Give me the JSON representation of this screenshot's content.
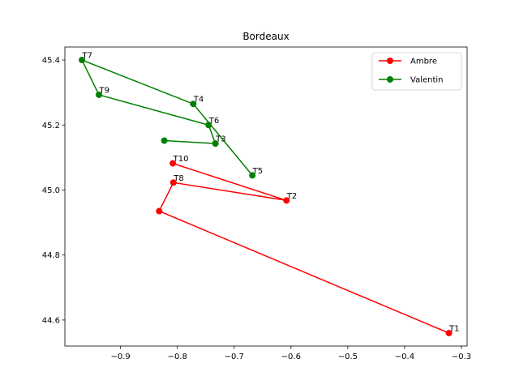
{
  "chart_data": {
    "type": "line",
    "title": "Bordeaux",
    "xlabel": "",
    "ylabel": "",
    "xlim": [
      -0.998,
      -0.29
    ],
    "ylim": [
      44.52,
      45.44
    ],
    "xticks": [
      -0.9,
      -0.8,
      -0.7,
      -0.6,
      -0.5,
      -0.4,
      -0.3
    ],
    "xtick_labels": [
      "−0.9",
      "−0.8",
      "−0.7",
      "−0.6",
      "−0.5",
      "−0.4",
      "−0.3"
    ],
    "yticks": [
      44.6,
      44.8,
      45.0,
      45.2,
      45.4
    ],
    "ytick_labels": [
      "44.6",
      "44.8",
      "45.0",
      "45.2",
      "45.4"
    ],
    "grid": false,
    "legend_position": "top-right",
    "series": [
      {
        "name": "Ambre",
        "color": "#ff0000",
        "points": [
          {
            "label": "T1",
            "x": -0.322,
            "y": 44.56
          },
          {
            "label": "",
            "x": -0.832,
            "y": 44.935
          },
          {
            "label": "T8",
            "x": -0.807,
            "y": 45.023
          },
          {
            "label": "T2",
            "x": -0.608,
            "y": 44.968
          },
          {
            "label": "T10",
            "x": -0.808,
            "y": 45.082
          }
        ]
      },
      {
        "name": "Valentin",
        "color": "#008000",
        "points": [
          {
            "label": "",
            "x": -0.823,
            "y": 45.152
          },
          {
            "label": "T3",
            "x": -0.733,
            "y": 45.143
          },
          {
            "label": "T6",
            "x": -0.745,
            "y": 45.2
          },
          {
            "label": "T9",
            "x": -0.938,
            "y": 45.293
          },
          {
            "label": "T7",
            "x": -0.968,
            "y": 45.4
          },
          {
            "label": "T4",
            "x": -0.772,
            "y": 45.265
          },
          {
            "label": "T5",
            "x": -0.668,
            "y": 45.045
          }
        ]
      }
    ]
  }
}
